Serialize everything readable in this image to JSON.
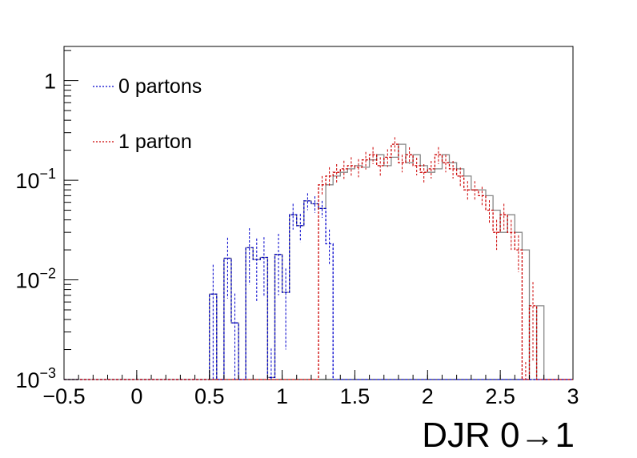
{
  "chart_data": {
    "type": "histogram",
    "title": "",
    "xlabel": "DJR 0→1",
    "ylabel": "",
    "x_range": [
      -0.5,
      3.0
    ],
    "y_range": [
      0.001,
      2.2
    ],
    "y_scale": "log",
    "grid": false,
    "legend_position": "top-left",
    "x_ticks": [
      "−0.5",
      "0",
      "0.5",
      "1",
      "1.5",
      "2",
      "2.5",
      "3"
    ],
    "x_tick_values": [
      -0.5,
      0,
      0.5,
      1,
      1.5,
      2,
      2.5,
      3
    ],
    "y_ticks": [
      {
        "value": 1,
        "base": "1",
        "exp": ""
      },
      {
        "value": 0.1,
        "base": "10",
        "exp": "−1"
      },
      {
        "value": 0.01,
        "base": "10",
        "exp": "−2"
      },
      {
        "value": 0.001,
        "base": "10",
        "exp": "−3"
      }
    ],
    "bin_edges_start": -0.5,
    "bin_width": 0.05,
    "series": [
      {
        "name": "0 partons",
        "color": "#0000cc",
        "line_style": "dashed",
        "values": [
          0,
          0,
          0,
          0,
          0,
          0,
          0,
          0,
          0,
          0,
          0,
          0,
          0,
          0,
          0,
          0,
          0,
          0,
          0,
          0,
          0.0072,
          0,
          0.0165,
          0.0037,
          0,
          0.021,
          0.016,
          0.0168,
          0.00105,
          0.018,
          0.0075,
          0.045,
          0.035,
          0.062,
          0.058,
          0.052,
          0.023,
          0,
          0,
          0,
          0,
          0,
          0,
          0,
          0,
          0,
          0,
          0,
          0,
          0,
          0,
          0,
          0,
          0,
          0,
          0,
          0,
          0,
          0,
          0,
          0,
          0,
          0,
          0,
          0,
          0,
          0,
          0,
          0,
          0
        ],
        "errors": [
          0,
          0,
          0,
          0,
          0,
          0,
          0,
          0,
          0,
          0,
          0,
          0,
          0,
          0,
          0,
          0,
          0,
          0,
          0,
          0,
          0.007,
          0,
          0.01,
          0.0036,
          0,
          0.012,
          0.01,
          0.01,
          0.001,
          0.011,
          0.0055,
          0.013,
          0.011,
          0.012,
          0.011,
          0.01,
          0.009,
          0,
          0,
          0,
          0,
          0,
          0,
          0,
          0,
          0,
          0,
          0,
          0,
          0,
          0,
          0,
          0,
          0,
          0,
          0,
          0,
          0,
          0,
          0,
          0,
          0,
          0,
          0,
          0,
          0,
          0,
          0,
          0,
          0
        ]
      },
      {
        "name": "1 parton",
        "color": "#cc0000",
        "line_style": "dashed",
        "values": [
          0,
          0,
          0,
          0,
          0,
          0,
          0,
          0,
          0,
          0,
          0,
          0,
          0,
          0,
          0,
          0,
          0,
          0,
          0,
          0,
          0,
          0,
          0,
          0,
          0,
          0,
          0,
          0,
          0,
          0,
          0,
          0,
          0,
          0,
          0,
          0.09,
          0.11,
          0.12,
          0.13,
          0.14,
          0.135,
          0.16,
          0.18,
          0.14,
          0.17,
          0.23,
          0.15,
          0.18,
          0.14,
          0.12,
          0.13,
          0.18,
          0.15,
          0.13,
          0.11,
          0.08,
          0.08,
          0.07,
          0.05,
          0.03,
          0.045,
          0.03,
          0.02,
          0.0008,
          0.0055,
          0,
          0,
          0,
          0,
          0
        ],
        "errors": [
          0,
          0,
          0,
          0,
          0,
          0,
          0,
          0,
          0,
          0,
          0,
          0,
          0,
          0,
          0,
          0,
          0,
          0,
          0,
          0,
          0,
          0,
          0,
          0,
          0,
          0,
          0,
          0,
          0,
          0,
          0,
          0,
          0,
          0,
          0,
          0.02,
          0.025,
          0.025,
          0.027,
          0.03,
          0.028,
          0.032,
          0.035,
          0.03,
          0.034,
          0.04,
          0.03,
          0.034,
          0.028,
          0.025,
          0.026,
          0.035,
          0.03,
          0.026,
          0.024,
          0.018,
          0.018,
          0.016,
          0.013,
          0.01,
          0.013,
          0.01,
          0.008,
          0.0007,
          0.004,
          0,
          0,
          0,
          0,
          0
        ]
      },
      {
        "name": "",
        "color": "#888888",
        "line_style": "solid",
        "values": [
          0,
          0,
          0,
          0,
          0,
          0,
          0,
          0,
          0,
          0,
          0,
          0,
          0,
          0,
          0,
          0,
          0,
          0,
          0,
          0,
          0.0072,
          0,
          0.0165,
          0.0037,
          0,
          0.021,
          0.016,
          0.0168,
          0.00105,
          0.018,
          0.0075,
          0.045,
          0.035,
          0.062,
          0.058,
          0.052,
          0.09,
          0.11,
          0.12,
          0.13,
          0.14,
          0.135,
          0.16,
          0.18,
          0.14,
          0.17,
          0.23,
          0.15,
          0.18,
          0.14,
          0.12,
          0.13,
          0.18,
          0.15,
          0.13,
          0.11,
          0.08,
          0.08,
          0.07,
          0.05,
          0.03,
          0.045,
          0.03,
          0.02,
          0.0008,
          0.0055,
          0,
          0,
          0,
          0
        ]
      }
    ]
  }
}
